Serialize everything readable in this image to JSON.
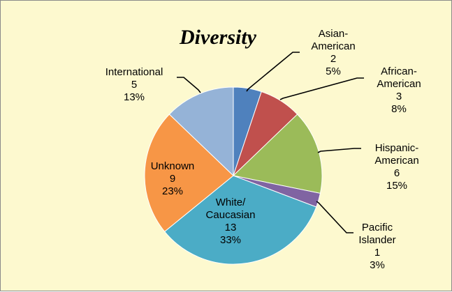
{
  "chart_data": {
    "type": "pie",
    "title": "Diversity",
    "slices": [
      {
        "label_lines": [
          "Asian-",
          "American"
        ],
        "value": 2,
        "percent": "5%",
        "color": "#4f81bd"
      },
      {
        "label_lines": [
          "African-",
          "American"
        ],
        "value": 3,
        "percent": "8%",
        "color": "#c0504d"
      },
      {
        "label_lines": [
          "Hispanic-",
          "American"
        ],
        "value": 6,
        "percent": "15%",
        "color": "#9bbb59"
      },
      {
        "label_lines": [
          "Pacific",
          "Islander"
        ],
        "value": 1,
        "percent": "3%",
        "color": "#8064a2"
      },
      {
        "label_lines": [
          "White/",
          "Caucasian"
        ],
        "value": 13,
        "percent": "33%",
        "color": "#4bacc6"
      },
      {
        "label_lines": [
          "Unknown"
        ],
        "value": 9,
        "percent": "23%",
        "color": "#f79646"
      },
      {
        "label_lines": [
          "International"
        ],
        "value": 5,
        "percent": "13%",
        "color": "#95b3d7"
      }
    ],
    "start_angle": "12 o'clock",
    "direction": "clockwise",
    "data_labels": "category, value, percentage",
    "legend": "none"
  }
}
